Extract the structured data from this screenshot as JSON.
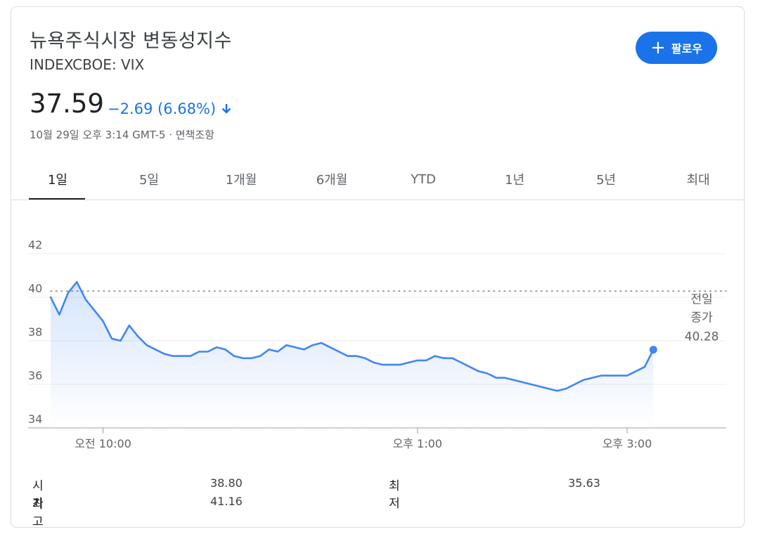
{
  "header": {
    "title": "뉴욕주식시장 변동성지수",
    "ticker": "INDEXCBOE: VIX",
    "follow_label": "팔로우",
    "follow_icon": "plus-icon"
  },
  "quote": {
    "price": "37.59",
    "change": "−2.69 (6.68%)",
    "direction_icon": "arrow-down-icon",
    "timestamp": "10월 29일 오후 3:14 GMT-5 · 면책조항"
  },
  "tabs": [
    {
      "label": "1일",
      "active": true
    },
    {
      "label": "5일"
    },
    {
      "label": "1개월"
    },
    {
      "label": "6개월"
    },
    {
      "label": "YTD"
    },
    {
      "label": "1년"
    },
    {
      "label": "5년"
    },
    {
      "label": "최대"
    }
  ],
  "chart_data": {
    "type": "line",
    "y_ticks": [
      "42",
      "40",
      "38",
      "36",
      "34"
    ],
    "ylim": [
      34,
      43
    ],
    "x_ticks": [
      {
        "label": "오전 10:00",
        "t": 600
      },
      {
        "label": "오후 1:00",
        "t": 780
      },
      {
        "label": "오후 3:00",
        "t": 900
      }
    ],
    "xlim": [
      570,
      960
    ],
    "prev_close": {
      "label_line1": "전일",
      "label_line2": "종가",
      "value": "40.28",
      "y": 40.28
    },
    "series": [
      {
        "color": "#4285f4",
        "x": [
          570,
          575,
          580,
          585,
          590,
          595,
          600,
          605,
          610,
          615,
          620,
          625,
          630,
          635,
          640,
          645,
          650,
          655,
          660,
          665,
          670,
          675,
          680,
          685,
          690,
          695,
          700,
          705,
          710,
          715,
          720,
          725,
          730,
          735,
          740,
          745,
          750,
          755,
          760,
          765,
          770,
          775,
          780,
          785,
          790,
          795,
          800,
          805,
          810,
          815,
          820,
          825,
          830,
          835,
          840,
          845,
          850,
          855,
          860,
          865,
          870,
          875,
          880,
          885,
          890,
          895,
          900,
          905,
          910,
          915
        ],
        "y": [
          40.0,
          39.2,
          40.2,
          40.7,
          39.9,
          39.4,
          38.9,
          38.1,
          38.0,
          38.7,
          38.2,
          37.8,
          37.6,
          37.4,
          37.3,
          37.3,
          37.3,
          37.5,
          37.5,
          37.7,
          37.6,
          37.3,
          37.2,
          37.2,
          37.3,
          37.6,
          37.5,
          37.8,
          37.7,
          37.6,
          37.8,
          37.9,
          37.7,
          37.5,
          37.3,
          37.3,
          37.2,
          37.0,
          36.9,
          36.9,
          36.9,
          37.0,
          37.1,
          37.1,
          37.3,
          37.2,
          37.2,
          37.0,
          36.8,
          36.6,
          36.5,
          36.3,
          36.3,
          36.2,
          36.1,
          36.0,
          35.9,
          35.8,
          35.7,
          35.8,
          36.0,
          36.2,
          36.3,
          36.4,
          36.4,
          36.4,
          36.4,
          36.6,
          36.8,
          37.59
        ]
      }
    ]
  },
  "stats": [
    {
      "label": "시가",
      "value": "38.80"
    },
    {
      "label": "최저",
      "value": "35.63"
    },
    {
      "label": "최고",
      "value": "41.16"
    }
  ]
}
